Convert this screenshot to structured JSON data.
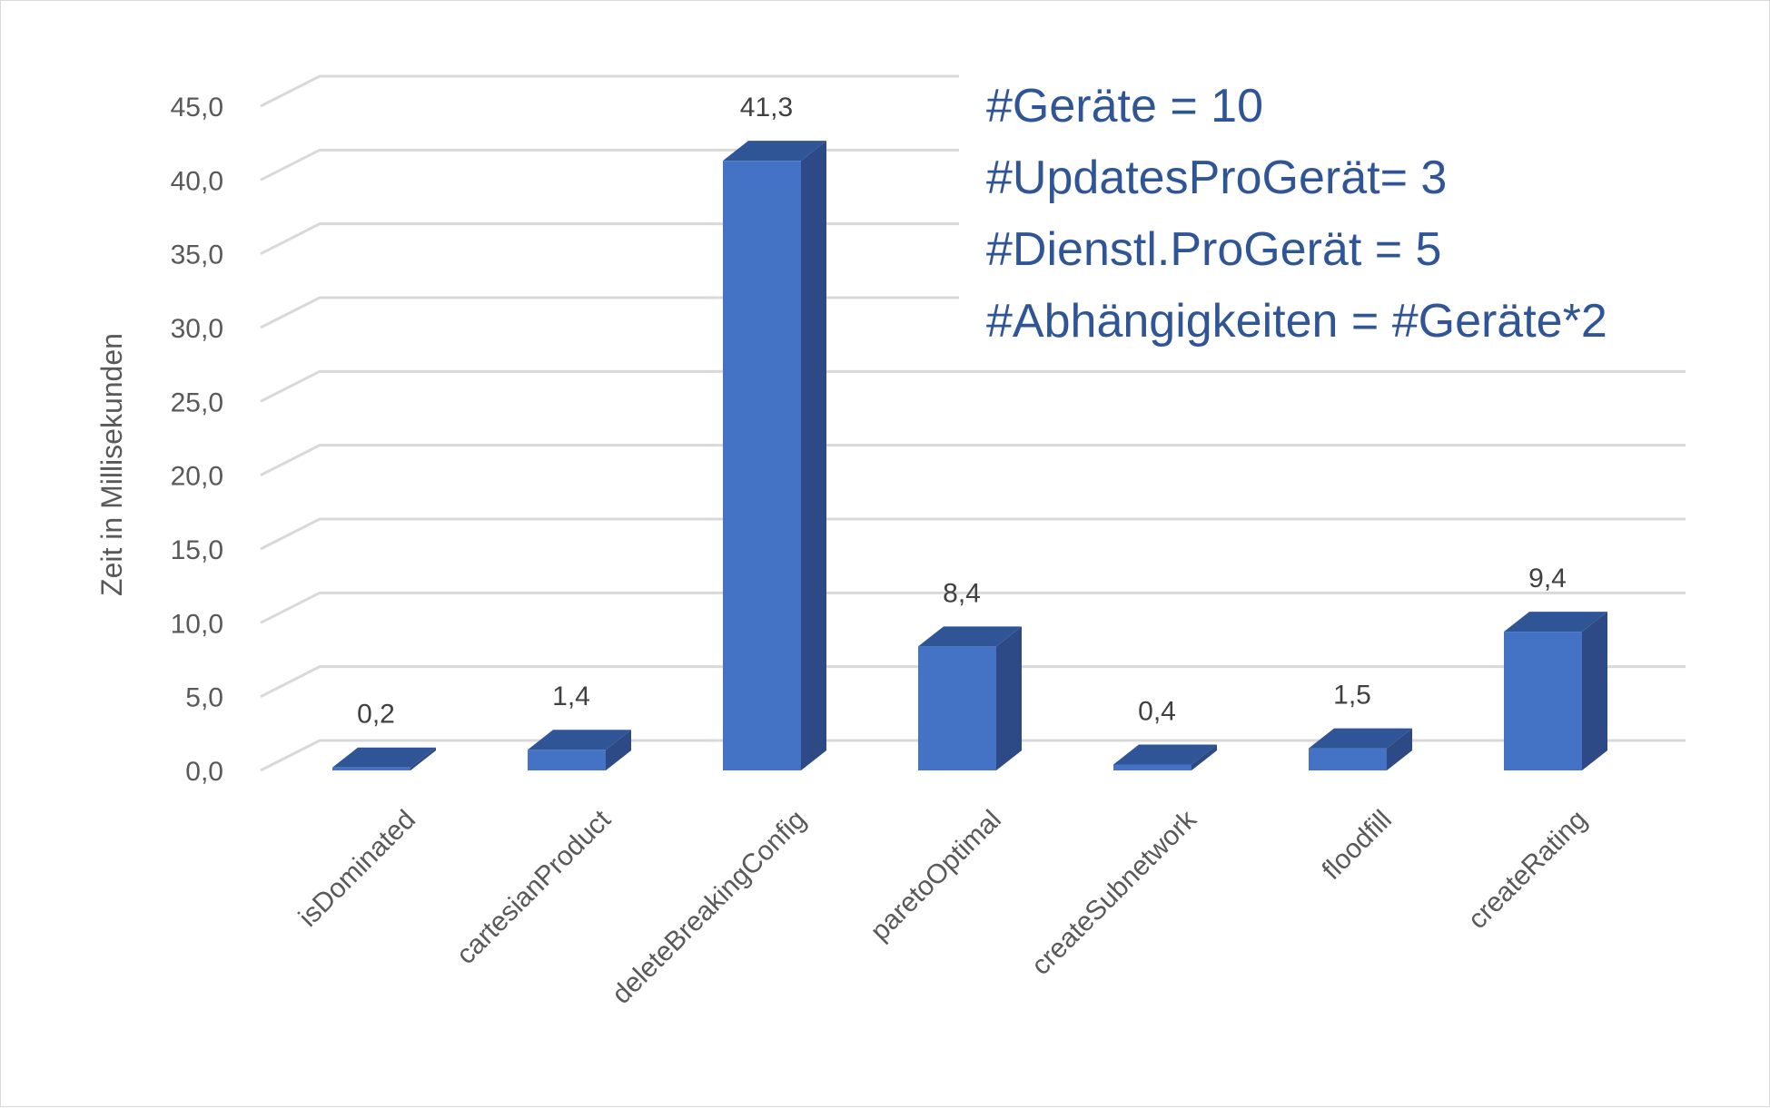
{
  "chart_data": {
    "type": "bar",
    "style": "3d-column",
    "categories": [
      "isDominated",
      "cartesianProduct",
      "deleteBreakingConfig",
      "paretoOptimal",
      "createSubnetwork",
      "floodfill",
      "createRating"
    ],
    "values": [
      0.2,
      1.4,
      41.3,
      8.4,
      0.4,
      1.5,
      9.4
    ],
    "data_labels": [
      "0,2",
      "1,4",
      "41,3",
      "8,4",
      "0,4",
      "1,5",
      "9,4"
    ],
    "title": "",
    "xlabel": "",
    "ylabel": "Zeit in Millisekunden",
    "ylim": [
      0,
      45
    ],
    "yticks": [
      "0,0",
      "5,0",
      "10,0",
      "15,0",
      "20,0",
      "25,0",
      "30,0",
      "35,0",
      "40,0",
      "45,0"
    ],
    "grid": true,
    "legend": "none",
    "colors": {
      "front": "#4472c4",
      "top": "#2f5597",
      "side": "#2e4a86",
      "annotation": "#2f5597"
    },
    "annotation_lines": [
      "#Geräte = 10",
      "#UpdatesProGerät= 3",
      "#Dienstl.ProGerät = 5",
      "#Abhängigkeiten = #Geräte*2"
    ]
  }
}
